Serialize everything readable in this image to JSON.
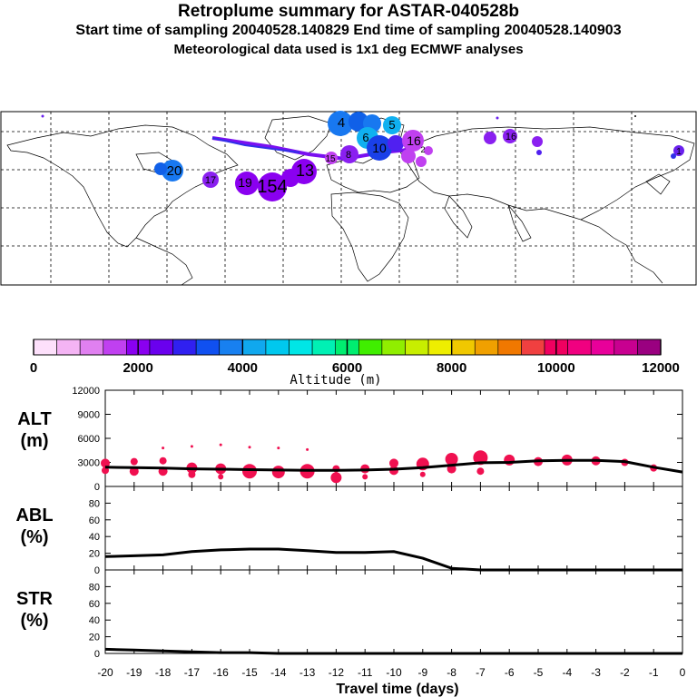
{
  "header": {
    "title": "Retroplume summary for ASTAR-040528b",
    "sampling": "Start time of sampling 20040528.140829     End time of sampling 20040528.140903",
    "met": "Meteorological data used is 1x1 deg ECMWF analyses"
  },
  "colors": {
    "scale": [
      "#fde0fb",
      "#f4b4f4",
      "#e080f0",
      "#c040f0",
      "#8a00f0",
      "#6a00ee",
      "#3020f0",
      "#1050f0",
      "#1880f0",
      "#10a8ee",
      "#00c8ee",
      "#00e6e6",
      "#00f0b4",
      "#00ee70",
      "#40ee00",
      "#90ee00",
      "#c8ee00",
      "#eeee00",
      "#f0c800",
      "#f0a000",
      "#f07800",
      "#f04040",
      "#f00060",
      "#f00080",
      "#e8009a",
      "#c80090",
      "#9a0080"
    ],
    "points": "#f01050",
    "line": "#000000"
  },
  "map": {
    "labels": [
      {
        "text": "4",
        "color": "#1878f0"
      },
      {
        "text": "5",
        "color": "#10b0f0"
      },
      {
        "text": "6",
        "color": "#10b0f0"
      },
      {
        "text": "10",
        "color": "#1a40e8"
      },
      {
        "text": "16",
        "color": "#c040f0"
      },
      {
        "text": "8",
        "color": "#8a20f0"
      },
      {
        "text": "2",
        "color": "#c040f0"
      },
      {
        "text": "15",
        "color": "#8a20f0"
      },
      {
        "text": "13",
        "color": "#8a00f0"
      },
      {
        "text": "154",
        "color": "#8a00f0"
      },
      {
        "text": "19",
        "color": "#8a00f0"
      },
      {
        "text": "17",
        "color": "#8a20f0"
      },
      {
        "text": "20",
        "color": "#1878f0"
      },
      {
        "text": "16",
        "color": "#8a20f0"
      },
      {
        "text": "1",
        "color": "#8a20f0"
      }
    ]
  },
  "colorbar": {
    "ticks": [
      "0",
      "2000",
      "4000",
      "6000",
      "8000",
      "10000",
      "12000"
    ],
    "label": "Altitude (m)"
  },
  "chart_data": [
    {
      "type": "line",
      "panel": "ALT",
      "ylabel": "ALT\n(m)",
      "ylim": [
        0,
        12000
      ],
      "yticks": [
        "12000",
        "9000",
        "6000",
        "3000",
        "0"
      ],
      "x": [
        -20,
        -19,
        -18,
        -17,
        -16,
        -15,
        -14,
        -13,
        -12,
        -11,
        -10,
        -9,
        -8,
        -7,
        -6,
        -5,
        -4,
        -3,
        -2,
        -1,
        0
      ],
      "values": [
        2400,
        2350,
        2300,
        2200,
        2150,
        2100,
        2050,
        2000,
        2000,
        2050,
        2150,
        2350,
        2650,
        2950,
        3000,
        3200,
        3250,
        3250,
        3100,
        2400,
        1800
      ],
      "scatter": [
        {
          "x": -20,
          "y": 2900,
          "s": 5
        },
        {
          "x": -20,
          "y": 2000,
          "s": 4
        },
        {
          "x": -19,
          "y": 3100,
          "s": 4
        },
        {
          "x": -19,
          "y": 1900,
          "s": 5
        },
        {
          "x": -18,
          "y": 4800,
          "s": 1.5
        },
        {
          "x": -18,
          "y": 3200,
          "s": 4
        },
        {
          "x": -18,
          "y": 1900,
          "s": 5
        },
        {
          "x": -17,
          "y": 5000,
          "s": 1.5
        },
        {
          "x": -17,
          "y": 2300,
          "s": 6
        },
        {
          "x": -17,
          "y": 1500,
          "s": 4
        },
        {
          "x": -16,
          "y": 5200,
          "s": 1.5
        },
        {
          "x": -16,
          "y": 2200,
          "s": 6
        },
        {
          "x": -16,
          "y": 1200,
          "s": 3
        },
        {
          "x": -15,
          "y": 4900,
          "s": 1.5
        },
        {
          "x": -15,
          "y": 1900,
          "s": 8
        },
        {
          "x": -14,
          "y": 4800,
          "s": 1.5
        },
        {
          "x": -14,
          "y": 1800,
          "s": 7
        },
        {
          "x": -13,
          "y": 4600,
          "s": 1.5
        },
        {
          "x": -13,
          "y": 1900,
          "s": 8
        },
        {
          "x": -12,
          "y": 2200,
          "s": 4
        },
        {
          "x": -12,
          "y": 1100,
          "s": 6
        },
        {
          "x": -11,
          "y": 2200,
          "s": 5
        },
        {
          "x": -11,
          "y": 1200,
          "s": 3
        },
        {
          "x": -10,
          "y": 2900,
          "s": 5
        },
        {
          "x": -10,
          "y": 2000,
          "s": 5
        },
        {
          "x": -9,
          "y": 2800,
          "s": 7
        },
        {
          "x": -9,
          "y": 1500,
          "s": 3
        },
        {
          "x": -8,
          "y": 3400,
          "s": 7
        },
        {
          "x": -8,
          "y": 2200,
          "s": 5
        },
        {
          "x": -7,
          "y": 3600,
          "s": 8
        },
        {
          "x": -7,
          "y": 1900,
          "s": 4
        },
        {
          "x": -6,
          "y": 3300,
          "s": 6
        },
        {
          "x": -5,
          "y": 3100,
          "s": 5
        },
        {
          "x": -4,
          "y": 3300,
          "s": 6
        },
        {
          "x": -3,
          "y": 3200,
          "s": 5
        },
        {
          "x": -2,
          "y": 3000,
          "s": 4
        },
        {
          "x": -1,
          "y": 2300,
          "s": 4
        }
      ]
    },
    {
      "type": "line",
      "panel": "ABL",
      "ylabel": "ABL\n(%)",
      "ylim": [
        0,
        100
      ],
      "yticks": [
        "80",
        "60",
        "40",
        "20",
        "0"
      ],
      "x": [
        -20,
        -19,
        -18,
        -17,
        -16,
        -15,
        -14,
        -13,
        -12,
        -11,
        -10,
        -9,
        -8,
        -7,
        -6,
        -5,
        -4,
        -3,
        -2,
        -1,
        0
      ],
      "values": [
        16,
        17,
        18,
        22,
        24,
        25,
        25,
        23,
        21,
        21,
        22,
        14,
        2,
        0,
        0,
        0,
        0,
        0,
        0,
        0,
        0
      ]
    },
    {
      "type": "line",
      "panel": "STR",
      "ylabel": "STR\n(%)",
      "ylim": [
        0,
        100
      ],
      "yticks": [
        "80",
        "60",
        "40",
        "20",
        "0"
      ],
      "x": [
        -20,
        -19,
        -18,
        -17,
        -16,
        -15,
        -14,
        -13,
        -12,
        -11,
        -10,
        -9,
        -8,
        -7,
        -6,
        -5,
        -4,
        -3,
        -2,
        -1,
        0
      ],
      "values": [
        5,
        4,
        3,
        2,
        1,
        1,
        0,
        0,
        0,
        0,
        0,
        0,
        0,
        0,
        0,
        0,
        0,
        0,
        0,
        0,
        0
      ]
    }
  ],
  "xaxis": {
    "ticks": [
      "-20",
      "-19",
      "-18",
      "-17",
      "-16",
      "-15",
      "-14",
      "-13",
      "-12",
      "-11",
      "-10",
      "-9",
      "-8",
      "-7",
      "-6",
      "-5",
      "-4",
      "-3",
      "-2",
      "-1",
      "0"
    ],
    "label": "Travel time (days)"
  }
}
